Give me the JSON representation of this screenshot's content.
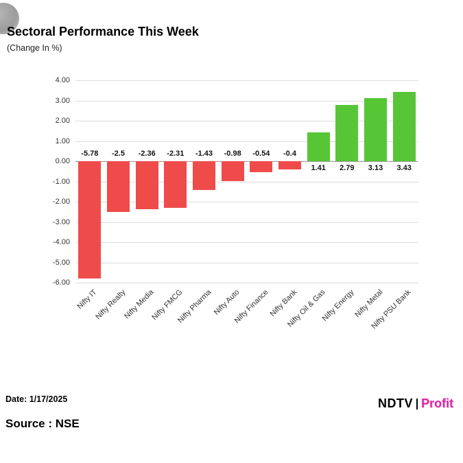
{
  "header": {
    "title": "Sectoral Performance This Week",
    "subtitle": "(Change In %)"
  },
  "footer": {
    "date_label": "Date: 1/17/2025",
    "source_label": "Source : NSE",
    "logo_ndtv": "NDTV",
    "logo_profit": "Profit"
  },
  "chart_data": {
    "type": "bar",
    "title": "Sectoral Performance This Week",
    "ylabel": "Change In %",
    "xlabel": "",
    "categories": [
      "Nifty IT",
      "Nifty Realty",
      "Nifty Media",
      "Nifty FMCG",
      "Nifty Pharma",
      "Nifty Auto",
      "Nifty Finance",
      "Nifty Bank",
      "Nifty Oil & Gas",
      "Nifty Energy",
      "Nifty Metal",
      "Nifty PSU Bank"
    ],
    "values": [
      -5.78,
      -2.5,
      -2.36,
      -2.31,
      -1.43,
      -0.98,
      -0.54,
      -0.4,
      1.41,
      2.79,
      3.13,
      3.43
    ],
    "value_labels": [
      "-5.78",
      "-2.5",
      "-2.36",
      "-2.31",
      "-1.43",
      "-0.98",
      "-0.54",
      "-0.4",
      "1.41",
      "2.79",
      "3.13",
      "3.43"
    ],
    "yticks": [
      "4.00",
      "3.00",
      "2.00",
      "1.00",
      "0.00",
      "-1.00",
      "-2.00",
      "-3.00",
      "-4.00",
      "-5.00",
      "-6.00"
    ],
    "ylim": [
      -6,
      4
    ],
    "grid": true,
    "legend": "none",
    "colors": {
      "positive": "#56c636",
      "negative": "#ef4b4b",
      "gridline": "#dcdcdc",
      "logo_accent": "#e5239d"
    }
  }
}
